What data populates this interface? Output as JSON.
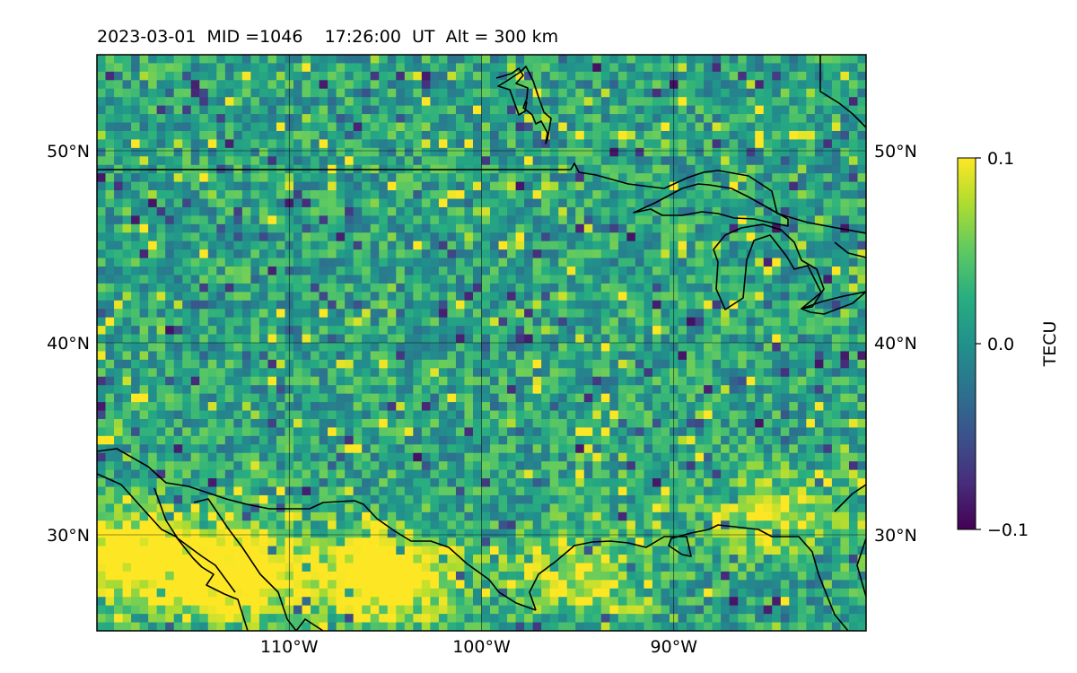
{
  "header": {
    "title": "2023-03-01  MID =1046    17:26:00  UT  Alt = 300 km"
  },
  "map": {
    "lon_range": [
      -120,
      -80
    ],
    "lat_range": [
      25,
      55
    ],
    "grid_lons": [
      -110,
      -100,
      -90
    ],
    "grid_lats": [
      30,
      40,
      50
    ],
    "lon_tick_labels": [
      "110°W",
      "100°W",
      "90°W"
    ],
    "lat_tick_labels_left": [
      "30°N",
      "40°N",
      "50°N"
    ],
    "lat_tick_labels_right": [
      "30°N",
      "40°N",
      "50°N"
    ],
    "pixel_grid": {
      "lon_cells": 90,
      "lat_cells": 68
    },
    "colormap": "viridis",
    "bright_regions": [
      {
        "lon": -113,
        "lat": 28,
        "strength": 0.9
      },
      {
        "lon": -105,
        "lat": 28,
        "strength": 0.8
      },
      {
        "lon": -118,
        "lat": 29,
        "strength": 0.8
      },
      {
        "lon": -95,
        "lat": 28,
        "strength": 0.4
      },
      {
        "lon": -85,
        "lat": 31,
        "strength": 0.4
      }
    ]
  },
  "colorbar": {
    "label": "TECU",
    "vmin": -0.1,
    "vmax": 0.1,
    "ticks": [
      {
        "value": 0.1,
        "label": "0.1"
      },
      {
        "value": 0.0,
        "label": "0.0"
      },
      {
        "value": -0.1,
        "label": "−0.1"
      }
    ]
  }
}
